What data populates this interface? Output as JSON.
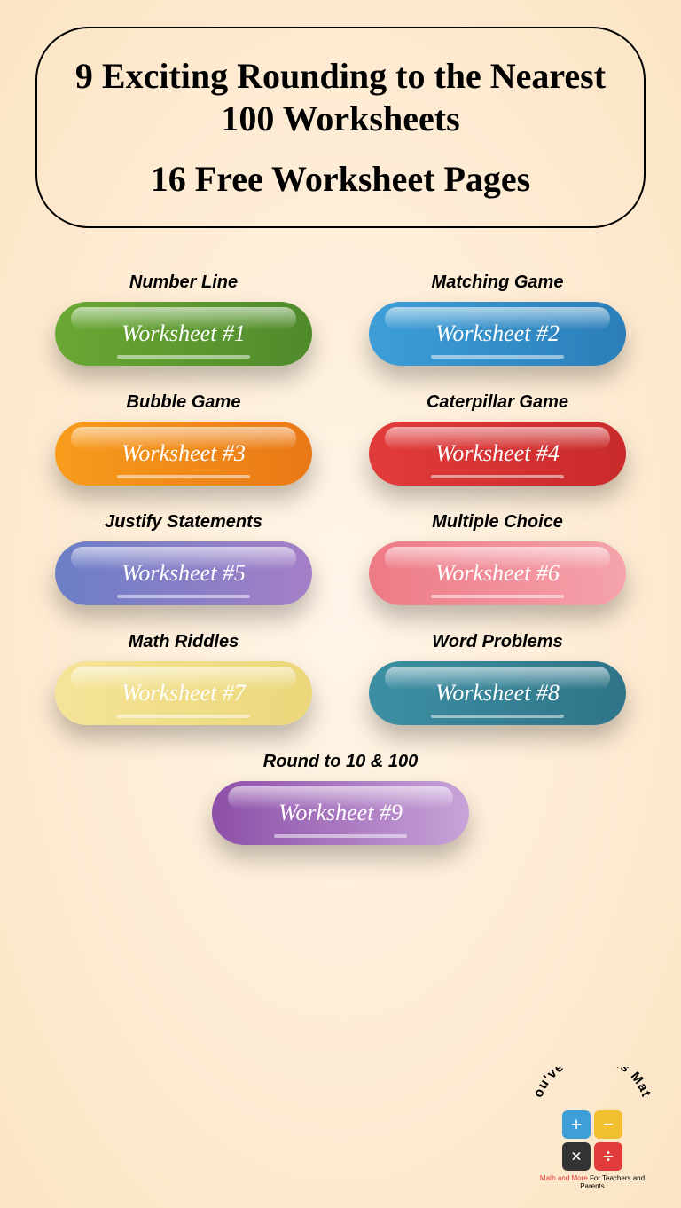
{
  "header": {
    "title": "9 Exciting Rounding to the Nearest 100 Worksheets",
    "subtitle": "16 Free Worksheet Pages"
  },
  "worksheets": [
    {
      "label": "Number Line",
      "button": "Worksheet #1",
      "gradient": [
        "#6aa834",
        "#4f8a2b"
      ]
    },
    {
      "label": "Matching Game",
      "button": "Worksheet #2",
      "gradient": [
        "#3d9ed8",
        "#2b7eb8"
      ]
    },
    {
      "label": "Bubble Game",
      "button": "Worksheet #3",
      "gradient": [
        "#f89c1c",
        "#e97816"
      ]
    },
    {
      "label": "Caterpillar Game",
      "button": "Worksheet #4",
      "gradient": [
        "#e23b3b",
        "#c92a2a"
      ]
    },
    {
      "label": "Justify Statements",
      "button": "Worksheet #5",
      "gradient": [
        "#6b7fc7",
        "#a57fc7"
      ]
    },
    {
      "label": "Multiple Choice",
      "button": "Worksheet #6",
      "gradient": [
        "#ed7a85",
        "#f5a3ac"
      ]
    },
    {
      "label": "Math Riddles",
      "button": "Worksheet #7",
      "gradient": [
        "#f5e499",
        "#ebd77a"
      ]
    },
    {
      "label": "Word Problems",
      "button": "Worksheet #8",
      "gradient": [
        "#3d8fa3",
        "#2f7488"
      ]
    },
    {
      "label": "Round to 10 & 100",
      "button": "Worksheet #9",
      "gradient": [
        "#8c4fa8",
        "#c7a3d8"
      ],
      "center": true
    }
  ],
  "logo": {
    "text": "You've Got This Math",
    "tagline_pre": "Math and More ",
    "tagline_post": "For Teachers and Parents",
    "squares": [
      {
        "symbol": "+",
        "color": "#3d9ed8"
      },
      {
        "symbol": "−",
        "color": "#f0c030"
      },
      {
        "symbol": "×",
        "color": "#333333"
      },
      {
        "symbol": "÷",
        "color": "#e23b3b"
      }
    ]
  }
}
